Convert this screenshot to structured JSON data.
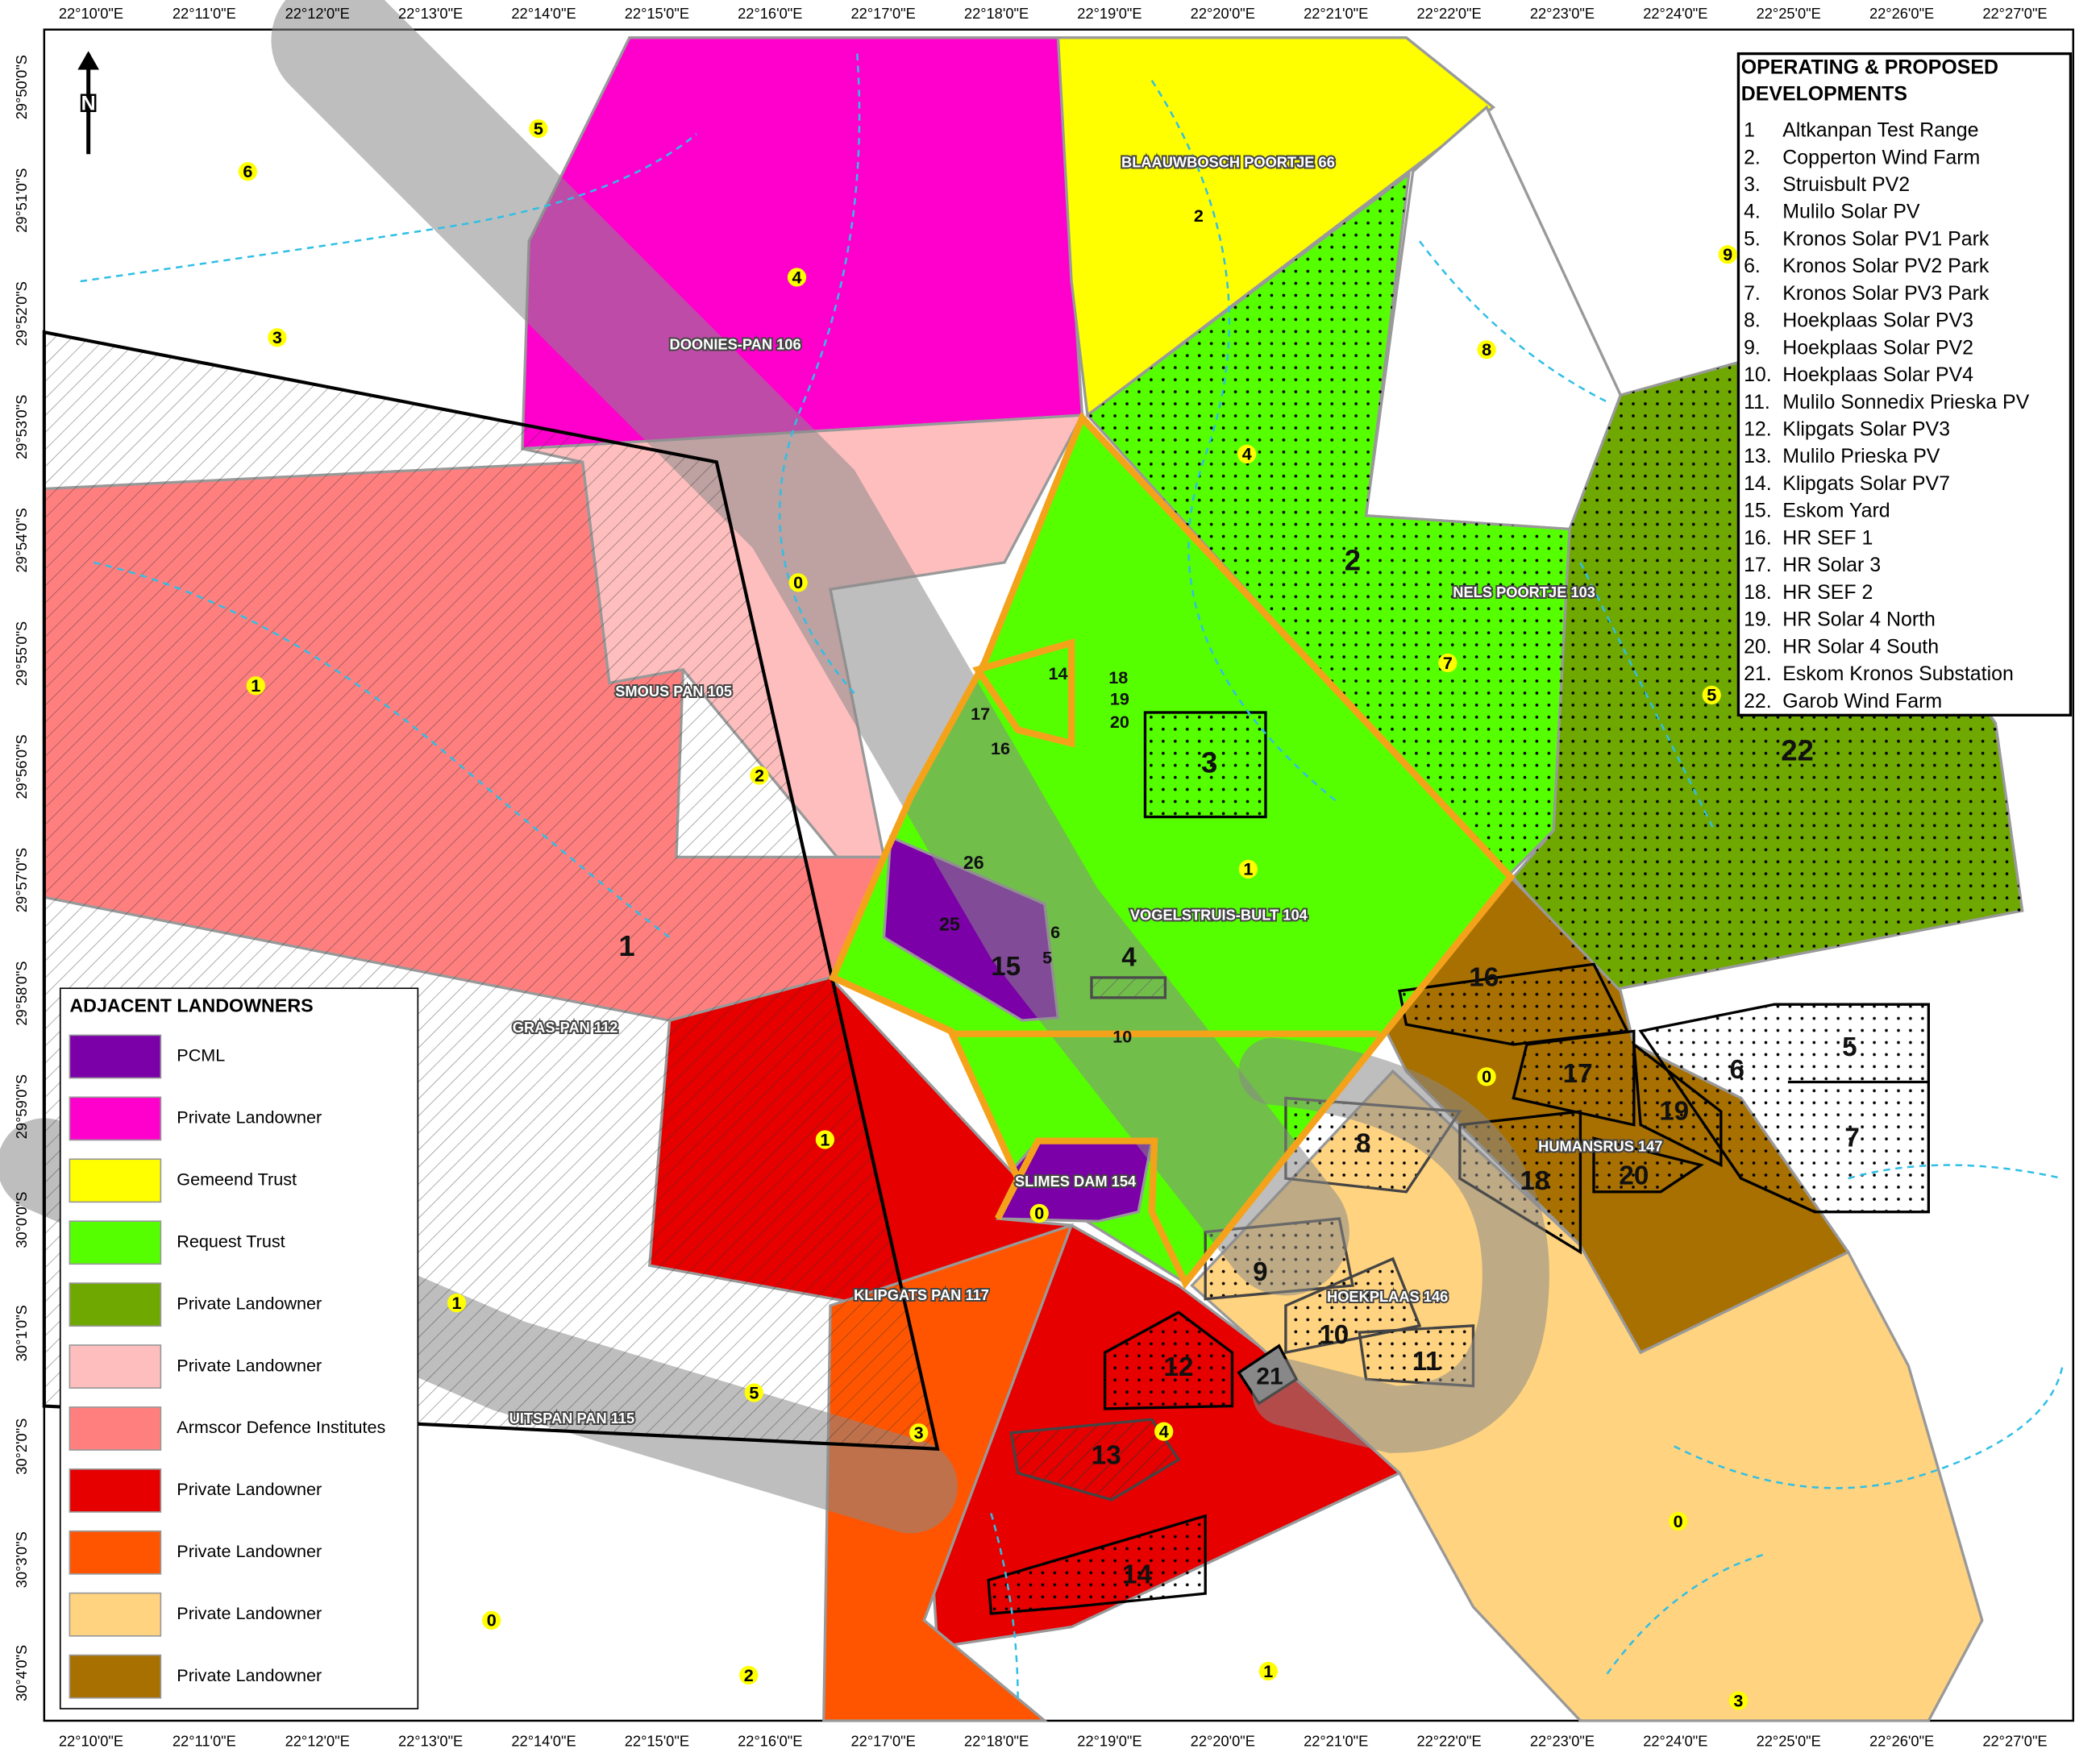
{
  "north_label": "N",
  "lon_labels": [
    "22°10'0\"E",
    "22°11'0\"E",
    "22°12'0\"E",
    "22°13'0\"E",
    "22°14'0\"E",
    "22°15'0\"E",
    "22°16'0\"E",
    "22°17'0\"E",
    "22°18'0\"E",
    "22°19'0\"E",
    "22°20'0\"E",
    "22°21'0\"E",
    "22°22'0\"E",
    "22°23'0\"E",
    "22°24'0\"E",
    "22°25'0\"E",
    "22°26'0\"E",
    "22°27'0\"E"
  ],
  "lat_labels": [
    "29°50'0\"S",
    "29°51'0\"S",
    "29°52'0\"S",
    "29°53'0\"S",
    "29°54'0\"S",
    "29°55'0\"S",
    "29°56'0\"S",
    "29°57'0\"S",
    "29°58'0\"S",
    "29°59'0\"S",
    "30°0'0\"S",
    "30°1'0\"S",
    "30°2'0\"S",
    "30°3'0\"S",
    "30°4'0\"S"
  ],
  "landowners_legend": {
    "title": "ADJACENT LANDOWNERS",
    "items": [
      {
        "name": "PCML",
        "color": "#7b00a8"
      },
      {
        "name": "Private Landowner",
        "color": "#ff00cc"
      },
      {
        "name": "Gemeend Trust",
        "color": "#ffff00"
      },
      {
        "name": "Request Trust",
        "color": "#55ff00"
      },
      {
        "name": "Private Landowner",
        "color": "#6fa800"
      },
      {
        "name": "Private Landowner",
        "color": "#ffbebe"
      },
      {
        "name": "Armscor Defence Institutes",
        "color": "#ff7f7f"
      },
      {
        "name": "Private Landowner",
        "color": "#e60000"
      },
      {
        "name": "Private Landowner",
        "color": "#ff5500"
      },
      {
        "name": "Private Landowner",
        "color": "#ffd37f"
      },
      {
        "name": "Private Landowner",
        "color": "#a87000"
      }
    ]
  },
  "developments_legend": {
    "title_lines": [
      "OPERATING & PROPOSED",
      "DEVELOPMENTS"
    ],
    "items": [
      {
        "number": "1",
        "name": "Altkanpan Test Range"
      },
      {
        "number": "2.",
        "name": "Copperton Wind Farm"
      },
      {
        "number": "3.",
        "name": "Struisbult PV2"
      },
      {
        "number": "4.",
        "name": "Mulilo Solar PV"
      },
      {
        "number": "5.",
        "name": "Kronos Solar PV1 Park"
      },
      {
        "number": "6.",
        "name": "Kronos Solar PV2 Park"
      },
      {
        "number": "7.",
        "name": "Kronos Solar PV3 Park"
      },
      {
        "number": "8.",
        "name": "Hoekplaas Solar PV3"
      },
      {
        "number": "9.",
        "name": "Hoekplaas Solar PV2"
      },
      {
        "number": "10.",
        "name": "Hoekplaas Solar PV4"
      },
      {
        "number": "11.",
        "name": "Mulilo Sonnedix Prieska PV"
      },
      {
        "number": "12.",
        "name": "Klipgats Solar PV3"
      },
      {
        "number": "13.",
        "name": "Mulilo Prieska PV"
      },
      {
        "number": "14.",
        "name": "Klipgats Solar PV7"
      },
      {
        "number": "15.",
        "name": "Eskom Yard"
      },
      {
        "number": "16.",
        "name": "HR SEF 1"
      },
      {
        "number": "17.",
        "name": "HR Solar 3"
      },
      {
        "number": "18.",
        "name": "HR SEF 2"
      },
      {
        "number": "19.",
        "name": "HR Solar 4 North"
      },
      {
        "number": "20.",
        "name": "HR Solar 4 South"
      },
      {
        "number": "21.",
        "name": "Eskom Kronos Substation"
      },
      {
        "number": "22.",
        "name": "Garob Wind Farm"
      }
    ]
  },
  "farm_names": [
    "BLAAUWBOSCH POORTJE 66",
    "DOONIES-PAN 106",
    "SMOUS PAN 105",
    "NELS POORTJE 103",
    "VOGELSTRUIS-BULT 104",
    "GRAS-PAN 112",
    "SLIMES DAM 154",
    "HUMANSRUS 147",
    "KLIPGATS PAN 117",
    "HOEKPLAAS 146",
    "UITSPAN PAN 115"
  ],
  "landowner_ids": [
    "6",
    "5",
    "3",
    "4",
    "2",
    "9",
    "8",
    "4",
    "0",
    "7",
    "5",
    "1",
    "2",
    "1",
    "0",
    "1",
    "0",
    "1",
    "5",
    "3",
    "4",
    "0",
    "0",
    "2",
    "1",
    "3"
  ],
  "development_ids": [
    "2",
    "3",
    "22",
    "1",
    "4",
    "16",
    "17",
    "19",
    "5",
    "6",
    "7",
    "8",
    "18",
    "20",
    "9",
    "10",
    "11",
    "12",
    "21",
    "13",
    "14",
    "26",
    "25",
    "15",
    "6",
    "5",
    "10",
    "14",
    "18",
    "19",
    "20",
    "17",
    "16"
  ]
}
